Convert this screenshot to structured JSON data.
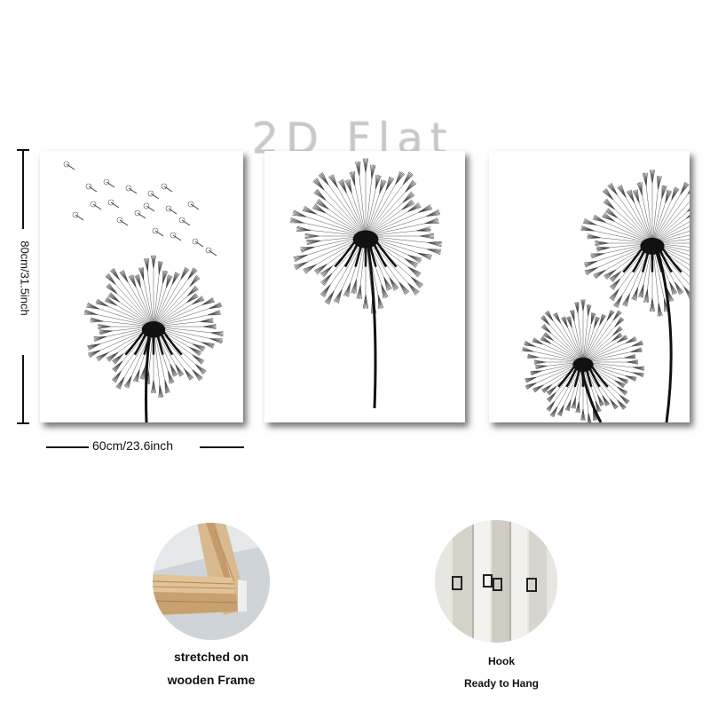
{
  "watermark": "2D Flat",
  "dimensions": {
    "height_label": "80cm/31.5inch",
    "width_label": "60cm/23.6inch"
  },
  "panels": [
    {
      "name": "dandelion-panel-left",
      "motif": "dandelion with seeds blowing away"
    },
    {
      "name": "dandelion-panel-center",
      "motif": "single dandelion on tall stem"
    },
    {
      "name": "dandelion-panel-right",
      "motif": "two dandelions"
    }
  ],
  "features": {
    "frame": {
      "caption_line1": "stretched on",
      "caption_line2": "wooden Frame"
    },
    "hook": {
      "caption_line1": "Hook",
      "caption_line2": "Ready to Hang"
    }
  }
}
